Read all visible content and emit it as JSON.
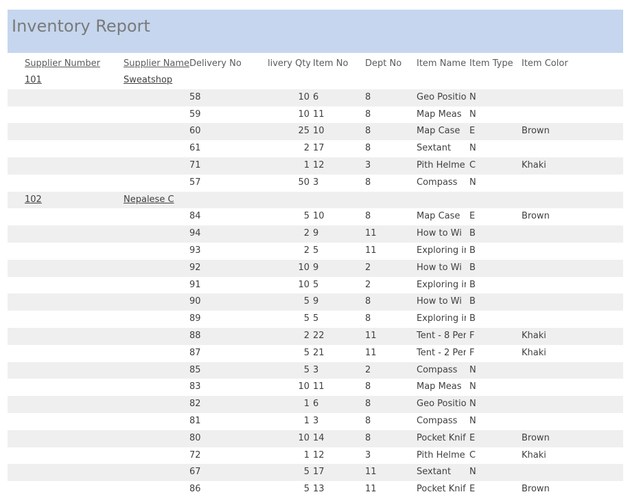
{
  "report": {
    "title": "Inventory Report"
  },
  "headers": {
    "supplier_number": "Supplier Number",
    "supplier_name": "Supplier Name",
    "delivery_no": "Delivery No",
    "delivery_qty": "livery Qty",
    "item_no": "Item No",
    "dept_no": "Dept No",
    "item_name": "Item Name",
    "item_type": "Item Type",
    "item_color": "Item Color"
  },
  "rows": [
    {
      "group": true,
      "supplier_number": "101",
      "supplier_name": "Sweatshop"
    },
    {
      "delivery_no": "58",
      "qty": "10",
      "item_no": "6",
      "dept": "8",
      "name": "Geo Positio",
      "type": "N",
      "color": ""
    },
    {
      "delivery_no": "59",
      "qty": "10",
      "item_no": "11",
      "dept": "8",
      "name": "Map Meas",
      "type": "N",
      "color": ""
    },
    {
      "delivery_no": "60",
      "qty": "25",
      "item_no": "10",
      "dept": "8",
      "name": "Map Case",
      "type": "E",
      "color": "Brown"
    },
    {
      "delivery_no": "61",
      "qty": "2",
      "item_no": "17",
      "dept": "8",
      "name": "Sextant",
      "type": "N",
      "color": ""
    },
    {
      "delivery_no": "71",
      "qty": "1",
      "item_no": "12",
      "dept": "3",
      "name": "Pith Helme",
      "type": "C",
      "color": "Khaki"
    },
    {
      "delivery_no": "57",
      "qty": "50",
      "item_no": "3",
      "dept": "8",
      "name": "Compass",
      "type": "N",
      "color": ""
    },
    {
      "group": true,
      "supplier_number": "102",
      "supplier_name": "Nepalese C"
    },
    {
      "delivery_no": "84",
      "qty": "5",
      "item_no": "10",
      "dept": "8",
      "name": "Map Case",
      "type": "E",
      "color": "Brown"
    },
    {
      "delivery_no": "94",
      "qty": "2",
      "item_no": "9",
      "dept": "11",
      "name": "How to Wi",
      "type": "B",
      "color": ""
    },
    {
      "delivery_no": "93",
      "qty": "2",
      "item_no": "5",
      "dept": "11",
      "name": "Exploring in",
      "type": "B",
      "color": ""
    },
    {
      "delivery_no": "92",
      "qty": "10",
      "item_no": "9",
      "dept": "2",
      "name": "How to Wi",
      "type": "B",
      "color": ""
    },
    {
      "delivery_no": "91",
      "qty": "10",
      "item_no": "5",
      "dept": "2",
      "name": "Exploring in",
      "type": "B",
      "color": ""
    },
    {
      "delivery_no": "90",
      "qty": "5",
      "item_no": "9",
      "dept": "8",
      "name": "How to Wi",
      "type": "B",
      "color": ""
    },
    {
      "delivery_no": "89",
      "qty": "5",
      "item_no": "5",
      "dept": "8",
      "name": "Exploring in",
      "type": "B",
      "color": ""
    },
    {
      "delivery_no": "88",
      "qty": "2",
      "item_no": "22",
      "dept": "11",
      "name": "Tent - 8 Per",
      "type": "F",
      "color": "Khaki"
    },
    {
      "delivery_no": "87",
      "qty": "5",
      "item_no": "21",
      "dept": "11",
      "name": "Tent - 2 Per",
      "type": "F",
      "color": "Khaki"
    },
    {
      "delivery_no": "85",
      "qty": "5",
      "item_no": "3",
      "dept": "2",
      "name": "Compass",
      "type": "N",
      "color": ""
    },
    {
      "delivery_no": "83",
      "qty": "10",
      "item_no": "11",
      "dept": "8",
      "name": "Map Meas",
      "type": "N",
      "color": ""
    },
    {
      "delivery_no": "82",
      "qty": "1",
      "item_no": "6",
      "dept": "8",
      "name": "Geo Positio",
      "type": "N",
      "color": ""
    },
    {
      "delivery_no": "81",
      "qty": "1",
      "item_no": "3",
      "dept": "8",
      "name": "Compass",
      "type": "N",
      "color": ""
    },
    {
      "delivery_no": "80",
      "qty": "10",
      "item_no": "14",
      "dept": "8",
      "name": "Pocket Knif",
      "type": "E",
      "color": "Brown"
    },
    {
      "delivery_no": "72",
      "qty": "1",
      "item_no": "12",
      "dept": "3",
      "name": "Pith Helme",
      "type": "C",
      "color": "Khaki"
    },
    {
      "delivery_no": "67",
      "qty": "5",
      "item_no": "17",
      "dept": "11",
      "name": "Sextant",
      "type": "N",
      "color": ""
    },
    {
      "delivery_no": "86",
      "qty": "5",
      "item_no": "13",
      "dept": "11",
      "name": "Pocket Knif",
      "type": "E",
      "color": "Brown"
    }
  ],
  "colors": {
    "header_band": "#c5d6ee",
    "alt_row": "#efefef",
    "title_text": "#7a7a7a"
  }
}
